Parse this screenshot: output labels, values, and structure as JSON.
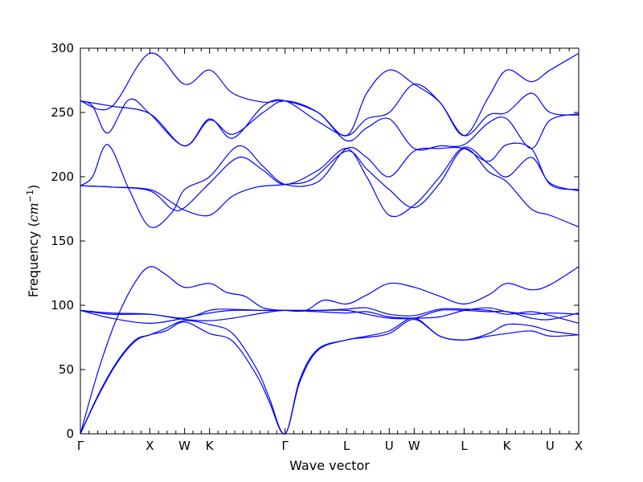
{
  "chart_data": {
    "type": "line",
    "title": "",
    "xlabel": "Wave vector",
    "ylabel": {
      "prefix": "Frequency (",
      "math": "cm",
      "sup": "−1",
      "suffix": ")"
    },
    "ylim": [
      0,
      300
    ],
    "yticks": [
      0,
      50,
      100,
      150,
      200,
      250,
      300
    ],
    "grid": false,
    "legend": "none",
    "line_color": "#0000ff",
    "xlim": [
      0,
      8.18
    ],
    "high_symmetry_points": [
      {
        "label": "Γ",
        "x": 0
      },
      {
        "label": "X",
        "x": 1.14
      },
      {
        "label": "W",
        "x": 1.71
      },
      {
        "label": "K",
        "x": 2.12
      },
      {
        "label": "Γ",
        "x": 3.36
      },
      {
        "label": "L",
        "x": 4.37
      },
      {
        "label": "U",
        "x": 5.07
      },
      {
        "label": "W",
        "x": 5.48
      },
      {
        "label": "L",
        "x": 6.3
      },
      {
        "label": "K",
        "x": 7.0
      },
      {
        "label": "U",
        "x": 7.71
      },
      {
        "label": "X",
        "x": 8.18
      }
    ],
    "series": [
      {
        "points": [
          [
            0,
            0
          ],
          [
            0.3,
            30
          ],
          [
            0.6,
            55
          ],
          [
            0.9,
            72
          ],
          [
            1.14,
            77
          ],
          [
            1.4,
            80
          ],
          [
            1.71,
            87
          ],
          [
            2.12,
            78
          ],
          [
            2.5,
            72
          ],
          [
            2.9,
            45
          ],
          [
            3.1,
            25
          ],
          [
            3.36,
            0
          ],
          [
            3.6,
            40
          ],
          [
            3.9,
            65
          ],
          [
            4.37,
            73
          ],
          [
            4.7,
            75
          ],
          [
            5.07,
            78
          ],
          [
            5.48,
            89
          ],
          [
            5.9,
            76
          ],
          [
            6.3,
            73
          ],
          [
            6.7,
            76
          ],
          [
            7.0,
            78
          ],
          [
            7.4,
            80
          ],
          [
            7.71,
            76
          ],
          [
            8.18,
            77
          ]
        ]
      },
      {
        "points": [
          [
            0,
            0
          ],
          [
            0.3,
            31
          ],
          [
            0.6,
            56
          ],
          [
            0.9,
            73
          ],
          [
            1.14,
            77
          ],
          [
            1.4,
            82
          ],
          [
            1.71,
            88
          ],
          [
            2.12,
            85
          ],
          [
            2.5,
            78
          ],
          [
            2.9,
            50
          ],
          [
            3.1,
            28
          ],
          [
            3.36,
            0
          ],
          [
            3.6,
            42
          ],
          [
            3.9,
            66
          ],
          [
            4.37,
            73
          ],
          [
            4.7,
            76
          ],
          [
            5.07,
            80
          ],
          [
            5.48,
            90
          ],
          [
            5.9,
            76
          ],
          [
            6.3,
            73
          ],
          [
            6.7,
            78
          ],
          [
            7.0,
            85
          ],
          [
            7.4,
            84
          ],
          [
            7.71,
            80
          ],
          [
            8.18,
            77
          ]
        ]
      },
      {
        "points": [
          [
            0,
            0
          ],
          [
            0.3,
            50
          ],
          [
            0.6,
            90
          ],
          [
            0.9,
            118
          ],
          [
            1.14,
            130
          ],
          [
            1.4,
            124
          ],
          [
            1.71,
            114
          ],
          [
            2.12,
            117
          ],
          [
            2.4,
            110
          ],
          [
            2.7,
            107
          ],
          [
            3.0,
            98
          ],
          [
            3.36,
            96
          ],
          [
            3.7,
            96
          ],
          [
            4.0,
            104
          ],
          [
            4.37,
            101
          ],
          [
            4.7,
            108
          ],
          [
            5.07,
            117
          ],
          [
            5.48,
            114
          ],
          [
            5.9,
            107
          ],
          [
            6.3,
            101
          ],
          [
            6.7,
            108
          ],
          [
            7.0,
            117
          ],
          [
            7.4,
            112
          ],
          [
            7.71,
            116
          ],
          [
            8.18,
            130
          ]
        ]
      },
      {
        "points": [
          [
            0,
            96
          ],
          [
            0.5,
            94
          ],
          [
            1.14,
            93
          ],
          [
            1.71,
            89
          ],
          [
            2.12,
            88
          ],
          [
            2.5,
            90
          ],
          [
            3.0,
            94
          ],
          [
            3.36,
            96
          ],
          [
            3.9,
            95
          ],
          [
            4.37,
            94
          ],
          [
            4.7,
            95
          ],
          [
            5.07,
            91
          ],
          [
            5.48,
            90
          ],
          [
            5.9,
            91
          ],
          [
            6.3,
            96
          ],
          [
            6.7,
            98
          ],
          [
            7.0,
            95
          ],
          [
            7.4,
            93
          ],
          [
            7.71,
            94
          ],
          [
            8.18,
            93
          ]
        ]
      },
      {
        "points": [
          [
            0,
            96
          ],
          [
            0.5,
            90
          ],
          [
            1.14,
            86
          ],
          [
            1.71,
            90
          ],
          [
            2.12,
            94
          ],
          [
            2.5,
            96
          ],
          [
            3.0,
            96
          ],
          [
            3.36,
            96
          ],
          [
            3.9,
            96
          ],
          [
            4.37,
            97
          ],
          [
            4.7,
            98
          ],
          [
            5.07,
            93
          ],
          [
            5.48,
            92
          ],
          [
            5.9,
            97
          ],
          [
            6.3,
            97
          ],
          [
            6.7,
            96
          ],
          [
            7.0,
            93
          ],
          [
            7.4,
            95
          ],
          [
            7.71,
            92
          ],
          [
            8.18,
            86
          ]
        ]
      },
      {
        "points": [
          [
            0,
            96
          ],
          [
            0.5,
            93
          ],
          [
            1.14,
            93
          ],
          [
            1.71,
            90
          ],
          [
            2.12,
            96
          ],
          [
            2.4,
            97
          ],
          [
            3.0,
            96
          ],
          [
            3.36,
            96
          ],
          [
            3.9,
            96
          ],
          [
            4.37,
            96
          ],
          [
            4.7,
            93
          ],
          [
            5.07,
            90
          ],
          [
            5.48,
            90
          ],
          [
            5.9,
            96
          ],
          [
            6.3,
            96
          ],
          [
            6.7,
            95
          ],
          [
            7.0,
            95
          ],
          [
            7.4,
            90
          ],
          [
            7.71,
            89
          ],
          [
            8.18,
            94
          ]
        ]
      },
      {
        "points": [
          [
            0,
            193
          ],
          [
            0.5,
            192
          ],
          [
            1.14,
            190
          ],
          [
            1.5,
            180
          ],
          [
            1.71,
            174
          ],
          [
            2.12,
            170
          ],
          [
            2.5,
            185
          ],
          [
            2.9,
            192
          ],
          [
            3.36,
            194
          ],
          [
            3.8,
            198
          ],
          [
            4.37,
            220
          ],
          [
            4.7,
            206
          ],
          [
            5.07,
            190
          ],
          [
            5.48,
            176
          ],
          [
            5.9,
            195
          ],
          [
            6.3,
            222
          ],
          [
            6.7,
            204
          ],
          [
            7.0,
            196
          ],
          [
            7.4,
            175
          ],
          [
            7.71,
            170
          ],
          [
            8.18,
            161
          ]
        ]
      },
      {
        "points": [
          [
            0,
            193
          ],
          [
            0.5,
            192
          ],
          [
            1.14,
            189
          ],
          [
            1.5,
            175
          ],
          [
            1.71,
            176
          ],
          [
            2.12,
            195
          ],
          [
            2.6,
            215
          ],
          [
            3.0,
            205
          ],
          [
            3.36,
            194
          ],
          [
            3.9,
            205
          ],
          [
            4.37,
            222
          ],
          [
            4.7,
            200
          ],
          [
            5.07,
            170
          ],
          [
            5.48,
            178
          ],
          [
            5.9,
            200
          ],
          [
            6.3,
            223
          ],
          [
            6.7,
            210
          ],
          [
            7.0,
            200
          ],
          [
            7.4,
            215
          ],
          [
            7.71,
            195
          ],
          [
            8.18,
            189
          ]
        ]
      },
      {
        "points": [
          [
            0,
            193
          ],
          [
            0.2,
            200
          ],
          [
            0.45,
            225
          ],
          [
            0.8,
            190
          ],
          [
            1.14,
            161
          ],
          [
            1.5,
            172
          ],
          [
            1.71,
            190
          ],
          [
            2.12,
            200
          ],
          [
            2.6,
            224
          ],
          [
            3.0,
            208
          ],
          [
            3.36,
            194
          ],
          [
            3.9,
            196
          ],
          [
            4.37,
            222
          ],
          [
            4.7,
            215
          ],
          [
            5.07,
            200
          ],
          [
            5.48,
            220
          ],
          [
            5.9,
            222
          ],
          [
            6.3,
            222
          ],
          [
            6.7,
            212
          ],
          [
            7.0,
            225
          ],
          [
            7.4,
            222
          ],
          [
            7.71,
            194
          ],
          [
            8.18,
            190
          ]
        ]
      },
      {
        "points": [
          [
            0,
            259
          ],
          [
            0.2,
            255
          ],
          [
            0.45,
            234
          ],
          [
            0.8,
            260
          ],
          [
            1.14,
            249
          ],
          [
            1.71,
            224
          ],
          [
            2.12,
            244
          ],
          [
            2.5,
            233
          ],
          [
            3.0,
            250
          ],
          [
            3.36,
            259
          ],
          [
            3.9,
            250
          ],
          [
            4.37,
            228
          ],
          [
            4.7,
            238
          ],
          [
            5.07,
            245
          ],
          [
            5.48,
            222
          ],
          [
            5.9,
            224
          ],
          [
            6.3,
            225
          ],
          [
            6.7,
            242
          ],
          [
            7.0,
            245
          ],
          [
            7.4,
            222
          ],
          [
            7.71,
            244
          ],
          [
            8.18,
            249
          ]
        ]
      },
      {
        "points": [
          [
            0,
            259
          ],
          [
            0.5,
            255
          ],
          [
            1.14,
            249
          ],
          [
            1.71,
            224
          ],
          [
            2.12,
            245
          ],
          [
            2.5,
            230
          ],
          [
            3.0,
            255
          ],
          [
            3.36,
            259
          ],
          [
            3.9,
            243
          ],
          [
            4.37,
            232
          ],
          [
            4.7,
            245
          ],
          [
            5.07,
            250
          ],
          [
            5.48,
            272
          ],
          [
            5.9,
            258
          ],
          [
            6.3,
            232
          ],
          [
            6.7,
            248
          ],
          [
            7.0,
            250
          ],
          [
            7.4,
            265
          ],
          [
            7.71,
            250
          ],
          [
            8.18,
            248
          ]
        ]
      },
      {
        "points": [
          [
            0,
            259
          ],
          [
            0.5,
            254
          ],
          [
            1.14,
            296
          ],
          [
            1.71,
            272
          ],
          [
            2.12,
            283
          ],
          [
            2.5,
            265
          ],
          [
            3.0,
            258
          ],
          [
            3.36,
            259
          ],
          [
            3.9,
            250
          ],
          [
            4.37,
            232
          ],
          [
            4.7,
            265
          ],
          [
            5.07,
            283
          ],
          [
            5.48,
            272
          ],
          [
            5.9,
            258
          ],
          [
            6.3,
            232
          ],
          [
            6.7,
            262
          ],
          [
            7.0,
            283
          ],
          [
            7.4,
            274
          ],
          [
            7.71,
            283
          ],
          [
            8.18,
            296
          ]
        ]
      }
    ]
  }
}
